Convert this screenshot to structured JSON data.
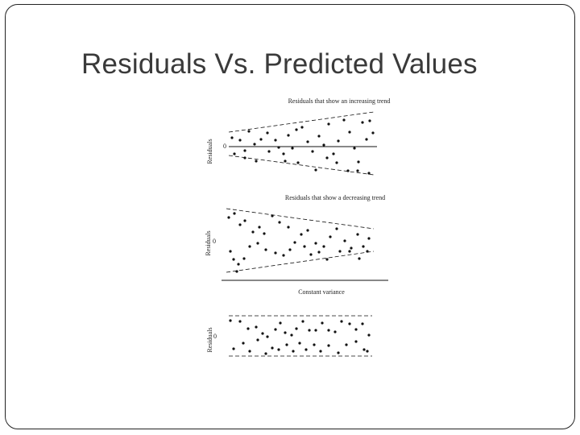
{
  "slide": {
    "title": "Residuals Vs. Predicted Values"
  },
  "figure": {
    "panels": [
      {
        "caption": "Residuals that show an increasing trend",
        "ylabel": "Residuals",
        "zero_label": "0",
        "trend": "increasing"
      },
      {
        "caption": "Residuals that show a decreasing trend",
        "ylabel": "Residuals",
        "zero_label": "0",
        "trend": "decreasing"
      },
      {
        "caption": "Constant variance",
        "ylabel": "Residuals",
        "zero_label": "0",
        "trend": "constant"
      }
    ]
  },
  "colors": {
    "title_text": "#3a3a3a",
    "frame_border": "#222222",
    "ink": "#111111"
  }
}
